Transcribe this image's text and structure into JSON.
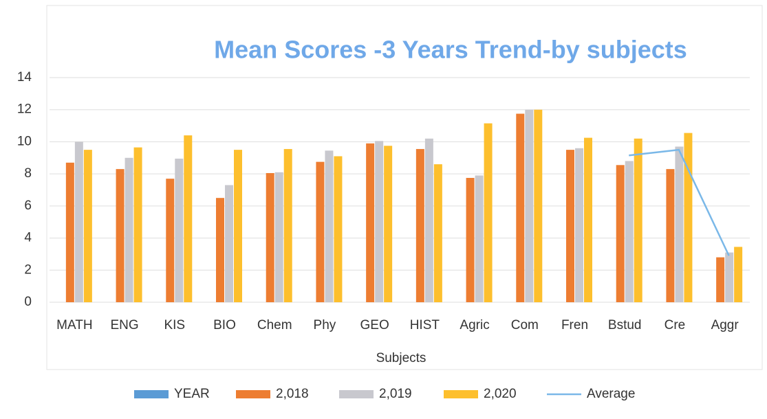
{
  "chart_data": {
    "type": "bar",
    "title": "Mean Scores -3 Years Trend-by subjects",
    "x_label": "Subjects",
    "categories": [
      "MATH",
      "ENG",
      "KIS",
      "BIO",
      "Chem",
      "Phy",
      "GEO",
      "HIST",
      "Agric",
      "Com",
      "Fren",
      "Bstud",
      "Cre",
      "Aggr"
    ],
    "series": [
      {
        "name": "YEAR",
        "color": "#5b9bd5",
        "values": [
          null,
          null,
          null,
          null,
          null,
          null,
          null,
          null,
          null,
          null,
          null,
          null,
          null,
          null
        ]
      },
      {
        "name": "2,018",
        "color": "#ed7d31",
        "values": [
          8.7,
          8.3,
          7.7,
          6.5,
          8.05,
          8.75,
          9.9,
          9.55,
          7.75,
          11.75,
          9.5,
          8.55,
          8.3,
          2.8
        ]
      },
      {
        "name": "2,019",
        "color": "#c8c8ce",
        "values": [
          10.0,
          9.0,
          8.95,
          7.3,
          8.1,
          9.45,
          10.05,
          10.2,
          7.9,
          12.0,
          9.6,
          8.8,
          9.7,
          3.1
        ]
      },
      {
        "name": "2,020",
        "color": "#fdbf2d",
        "values": [
          9.5,
          9.65,
          10.4,
          9.5,
          9.55,
          9.1,
          9.75,
          8.6,
          11.15,
          12.0,
          10.25,
          10.2,
          10.55,
          3.45
        ]
      },
      {
        "name": "Average",
        "color": "#7ab8e8",
        "type": "line",
        "values": [
          null,
          null,
          null,
          null,
          null,
          null,
          null,
          null,
          null,
          null,
          null,
          9.15,
          9.5,
          2.9
        ]
      }
    ],
    "ylim": [
      0,
      14
    ],
    "yticks": [
      0,
      2,
      4,
      6,
      8,
      10,
      12,
      14
    ],
    "grid": true,
    "legend": "bottom"
  }
}
